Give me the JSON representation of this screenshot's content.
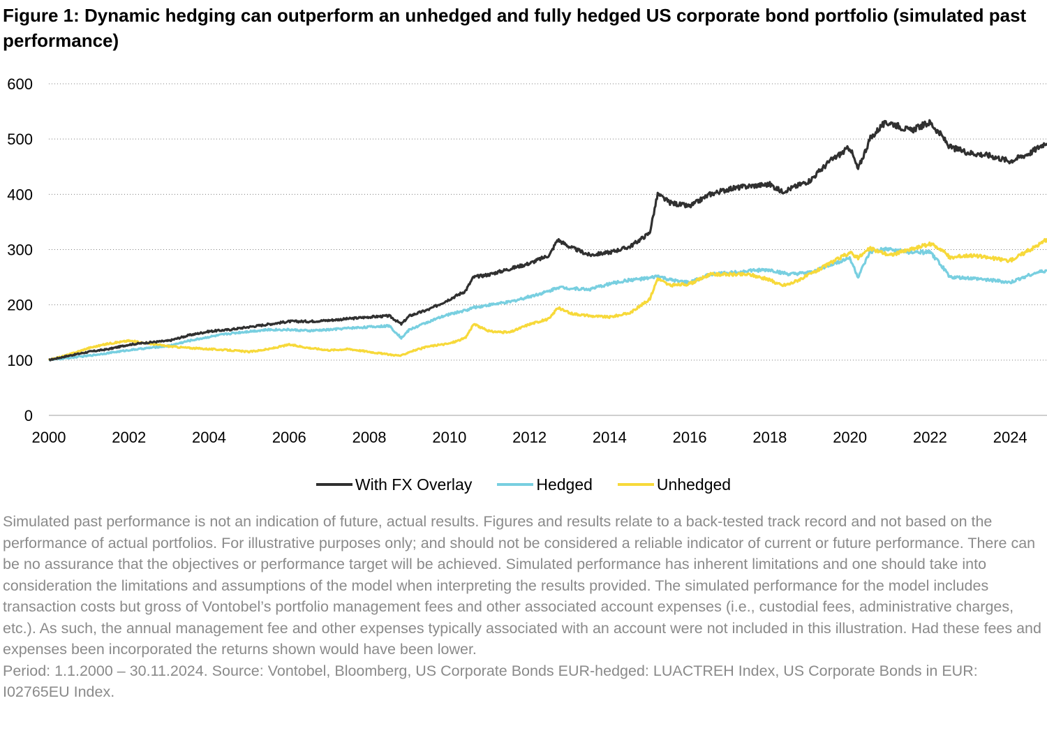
{
  "title": "Figure 1: Dynamic hedging can outperform an unhedged and fully hedged US corporate bond portfolio (simulated past performance)",
  "chart_data": {
    "type": "line",
    "title": "Figure 1: Dynamic hedging can outperform an unhedged and fully hedged US corporate bond portfolio (simulated past performance)",
    "xlabel": "",
    "ylabel": "",
    "xlim": [
      2000,
      2024.92
    ],
    "ylim": [
      0,
      600
    ],
    "x_ticks": [
      "2000",
      "2002",
      "2004",
      "2006",
      "2008",
      "2010",
      "2012",
      "2014",
      "2016",
      "2018",
      "2020",
      "2022",
      "2024"
    ],
    "y_ticks": [
      "0",
      "100",
      "200",
      "300",
      "400",
      "500",
      "600"
    ],
    "grid": "horizontal dotted",
    "legend_position": "bottom-center",
    "x": [
      2000,
      2000.5,
      2001,
      2001.5,
      2002,
      2002.5,
      2003,
      2003.5,
      2004,
      2004.5,
      2005,
      2005.5,
      2006,
      2006.5,
      2007,
      2007.5,
      2008,
      2008.5,
      2008.8,
      2009,
      2009.5,
      2010,
      2010.4,
      2010.6,
      2011,
      2011.5,
      2012,
      2012.5,
      2012.7,
      2013,
      2013.5,
      2014,
      2014.5,
      2015,
      2015.2,
      2015.5,
      2016,
      2016.5,
      2017,
      2017.5,
      2018,
      2018.3,
      2018.5,
      2019,
      2019.5,
      2020,
      2020.2,
      2020.5,
      2020.8,
      2021,
      2021.5,
      2022,
      2022.3,
      2022.5,
      2023,
      2023.5,
      2024,
      2024.5,
      2024.92
    ],
    "series": [
      {
        "name": "With FX Overlay",
        "color": "#303030",
        "values": [
          100,
          108,
          115,
          120,
          128,
          132,
          135,
          145,
          152,
          155,
          160,
          165,
          170,
          170,
          172,
          175,
          178,
          180,
          165,
          180,
          192,
          210,
          225,
          250,
          255,
          265,
          275,
          290,
          318,
          305,
          290,
          295,
          305,
          330,
          400,
          385,
          378,
          400,
          410,
          415,
          418,
          405,
          410,
          425,
          460,
          485,
          445,
          500,
          525,
          530,
          515,
          530,
          505,
          485,
          475,
          470,
          460,
          475,
          495
        ]
      },
      {
        "name": "Hedged",
        "color": "#78cfe0",
        "values": [
          100,
          104,
          108,
          113,
          118,
          122,
          126,
          135,
          142,
          148,
          152,
          155,
          155,
          153,
          155,
          158,
          160,
          162,
          140,
          155,
          170,
          183,
          190,
          195,
          200,
          205,
          215,
          225,
          232,
          230,
          228,
          238,
          245,
          248,
          252,
          245,
          240,
          255,
          258,
          262,
          263,
          258,
          255,
          258,
          272,
          285,
          250,
          295,
          300,
          300,
          295,
          295,
          270,
          250,
          248,
          245,
          240,
          255,
          262
        ]
      },
      {
        "name": "Unhedged",
        "color": "#f7d93a",
        "values": [
          100,
          110,
          122,
          130,
          135,
          130,
          125,
          122,
          120,
          118,
          115,
          120,
          128,
          122,
          118,
          120,
          115,
          110,
          108,
          115,
          125,
          130,
          140,
          165,
          152,
          150,
          165,
          175,
          195,
          185,
          180,
          178,
          185,
          210,
          248,
          235,
          238,
          255,
          255,
          255,
          245,
          235,
          238,
          255,
          275,
          295,
          285,
          302,
          295,
          290,
          300,
          310,
          300,
          285,
          290,
          285,
          280,
          300,
          318
        ]
      }
    ]
  },
  "legend": {
    "items": [
      {
        "label": "With FX Overlay",
        "color": "#303030"
      },
      {
        "label": "Hedged",
        "color": "#78cfe0"
      },
      {
        "label": "Unhedged",
        "color": "#f7d93a"
      }
    ]
  },
  "notes": {
    "disclaimer": "Simulated past performance is not an indication of future, actual results. Figures and results relate to a back-tested track record and not based on the performance of actual portfolios. For illustrative purposes only; and should not be considered a reliable indicator of current or future performance. There can be no assurance that the objectives or performance target will be achieved. Simulated performance has inherent limitations and one should take into consideration the limitations and assumptions of the model when interpreting the results provided. The simulated performance for the model includes transaction costs but gross of Vontobel’s portfolio management fees and other associated account expenses (i.e., custodial fees, administrative charges, etc.). As such, the annual management fee and other expenses typically associated with an account were not included in this illustration. Had these fees and expenses been incorporated the returns shown would have been lower.",
    "source": "Period: 1.1.2000 – 30.11.2024. Source: Vontobel, Bloomberg, US Corporate Bonds EUR-hedged: LUACTREH Index, US Corporate Bonds in EUR: I02765EU Index."
  }
}
